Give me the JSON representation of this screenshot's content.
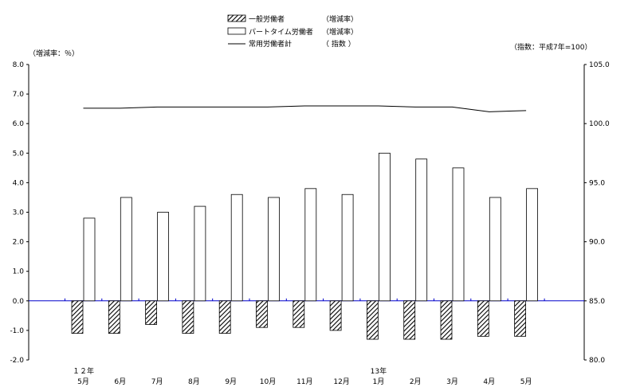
{
  "chart_data": {
    "type": "bar",
    "legend": {
      "position": "top-center",
      "entries": [
        {
          "label": "一般労働者",
          "note": "（増減率）",
          "kind": "hatched-bar"
        },
        {
          "label": "パートタイム労働者",
          "note": "（増減率）",
          "kind": "white-bar"
        },
        {
          "label": "常用労働者計",
          "note": "（ 指数 ）",
          "kind": "line"
        }
      ]
    },
    "left_axis_title": "（増減率：％）",
    "right_axis_title": "（指数：平成7年=100）",
    "categories": [
      "5月",
      "6月",
      "7月",
      "8月",
      "9月",
      "10月",
      "11月",
      "12月",
      "1月",
      "2月",
      "3月",
      "4月",
      "5月"
    ],
    "year_labels": [
      {
        "index": 0,
        "label": "１２年"
      },
      {
        "index": 8,
        "label": "13年"
      }
    ],
    "left_axis": {
      "min": -2.0,
      "max": 8.0,
      "step": 1.0,
      "ticks": [
        "8.0",
        "7.0",
        "6.0",
        "5.0",
        "4.0",
        "3.0",
        "2.0",
        "1.0",
        "0.0",
        "-1.0",
        "-2.0"
      ]
    },
    "right_axis": {
      "min": 80.0,
      "max": 105.0,
      "step": 5.0,
      "ticks": [
        "105.0",
        "100.0",
        "95.0",
        "90.0",
        "85.0",
        "80.0"
      ]
    },
    "grid": false,
    "series": [
      {
        "name": "一般労働者",
        "axis": "left",
        "type": "bar",
        "style": "hatched",
        "values": [
          -1.1,
          -1.1,
          -0.8,
          -1.1,
          -1.1,
          -0.9,
          -0.9,
          -1.0,
          -1.3,
          -1.3,
          -1.3,
          -1.2,
          -1.2
        ]
      },
      {
        "name": "パートタイム労働者",
        "axis": "left",
        "type": "bar",
        "style": "white",
        "values": [
          2.8,
          3.5,
          3.0,
          3.2,
          3.6,
          3.5,
          3.8,
          3.6,
          5.0,
          4.8,
          4.5,
          3.5,
          3.8
        ]
      },
      {
        "name": "常用労働者計",
        "axis": "right",
        "type": "line",
        "values": [
          101.3,
          101.3,
          101.4,
          101.4,
          101.4,
          101.4,
          101.5,
          101.5,
          101.5,
          101.4,
          101.4,
          101.0,
          101.1
        ]
      }
    ]
  }
}
